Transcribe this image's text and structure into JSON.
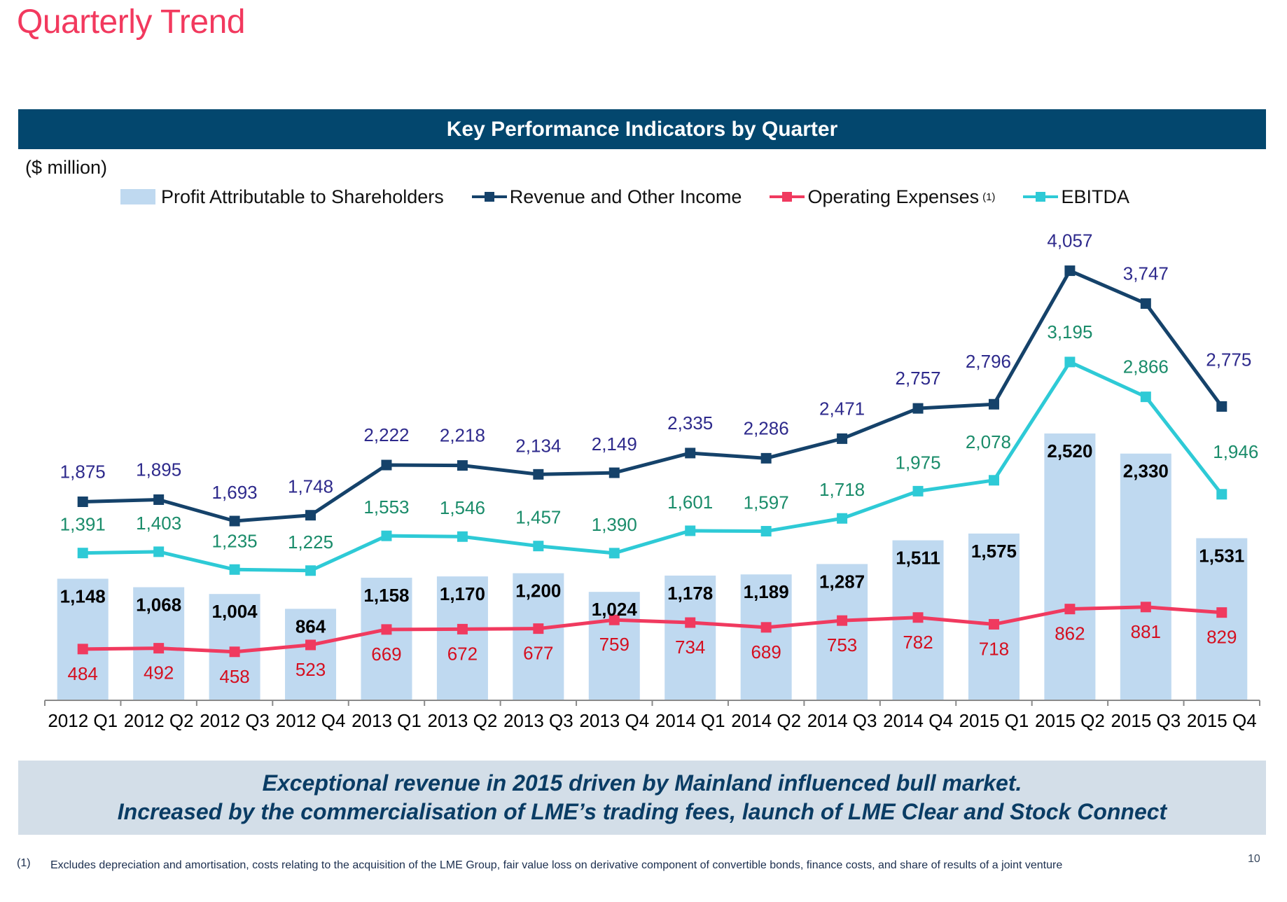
{
  "page": {
    "title": "Quarterly Trend",
    "header": "Key Performance Indicators by Quarter",
    "units": "($ million)",
    "callout": [
      "Exceptional revenue in 2015 driven by Mainland influenced bull market.",
      "Increased by the commercialisation of LME’s trading fees, launch of LME Clear and Stock Connect"
    ],
    "footnote": {
      "marker": "(1)",
      "text": "Excludes depreciation and amortisation, costs relating to the acquisition of the LME Group, fair value loss on derivative component of convertible bonds, finance costs, and share of results of a joint venture"
    },
    "page_number": "10"
  },
  "legend": [
    {
      "name": "Profit Attributable to Shareholders",
      "kind": "bar",
      "color": "#BFD9F0",
      "sup": ""
    },
    {
      "name": "Revenue and Other Income",
      "kind": "line",
      "color": "#15426A",
      "sup": ""
    },
    {
      "name": "Operating Expenses",
      "kind": "line",
      "color": "#F03A5F",
      "sup": "(1)"
    },
    {
      "name": "EBITDA",
      "kind": "line",
      "color": "#2ECAD6",
      "sup": ""
    }
  ],
  "chart_data": {
    "type": "bar",
    "title": "Key Performance Indicators by Quarter",
    "ylabel": "$ million",
    "xlabel": "",
    "ylim": [
      0,
      4300
    ],
    "grid": false,
    "legend_position": "top",
    "categories": [
      "2012 Q1",
      "2012 Q2",
      "2012 Q3",
      "2012 Q4",
      "2013 Q1",
      "2013 Q2",
      "2013 Q3",
      "2013 Q4",
      "2014 Q1",
      "2014 Q2",
      "2014 Q3",
      "2014 Q4",
      "2015 Q1",
      "2015 Q2",
      "2015 Q3",
      "2015 Q4"
    ],
    "series": [
      {
        "name": "Profit Attributable to Shareholders",
        "type": "bar",
        "color": "#BFD9F0",
        "label_color": "#000000",
        "values": [
          1148,
          1068,
          1004,
          864,
          1158,
          1170,
          1200,
          1024,
          1178,
          1189,
          1287,
          1511,
          1575,
          2520,
          2330,
          1531
        ]
      },
      {
        "name": "Revenue and Other Income",
        "type": "line",
        "color": "#15426A",
        "label_color": "#2E2A8C",
        "values": [
          1875,
          1895,
          1693,
          1748,
          2222,
          2218,
          2134,
          2149,
          2335,
          2286,
          2471,
          2757,
          2796,
          4057,
          3747,
          2775
        ]
      },
      {
        "name": "Operating Expenses",
        "type": "line",
        "color": "#F03A5F",
        "label_color": "#D50F1F",
        "values": [
          484,
          492,
          458,
          523,
          669,
          672,
          677,
          759,
          734,
          689,
          753,
          782,
          718,
          862,
          881,
          829
        ]
      },
      {
        "name": "EBITDA",
        "type": "line",
        "color": "#2ECAD6",
        "label_color": "#1A8C6A",
        "values": [
          1391,
          1403,
          1235,
          1225,
          1553,
          1546,
          1457,
          1390,
          1601,
          1597,
          1718,
          1975,
          2078,
          3195,
          2866,
          1946
        ]
      }
    ]
  }
}
